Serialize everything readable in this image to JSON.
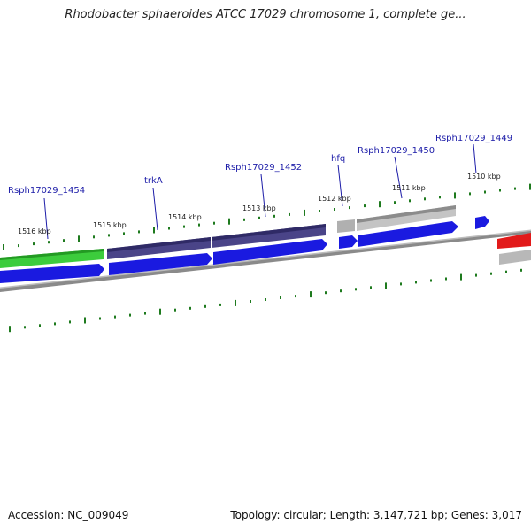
{
  "title": "Rhodobacter sphaeroides ATCC 17029 chromosome 1, complete ge...",
  "footer": {
    "accession": "Accession: NC_009049",
    "stats": "Topology: circular; Length: 3,147,721 bp; Genes: 3,017"
  },
  "kbp_labels": [
    "1516 kbp",
    "1515 kbp",
    "1514 kbp",
    "1513 kbp",
    "1512 kbp",
    "1511 kbp",
    "1510 kbp"
  ],
  "gene_labels": [
    "Rsph17029_1454",
    "trkA",
    "Rsph17029_1452",
    "hfq",
    "Rsph17029_1450",
    "Rsph17029_1449"
  ],
  "colors": {
    "tick": "#1e7a1e",
    "backbone": "#8a8a8a",
    "cds_blue": "#1a1ae0",
    "gene_green": "#3ccc3c",
    "gene_purple": "#4a4488",
    "gene_gray": "#b8b8b8",
    "gene_red": "#e21a1a",
    "label_blue": "#1c1ca8"
  }
}
